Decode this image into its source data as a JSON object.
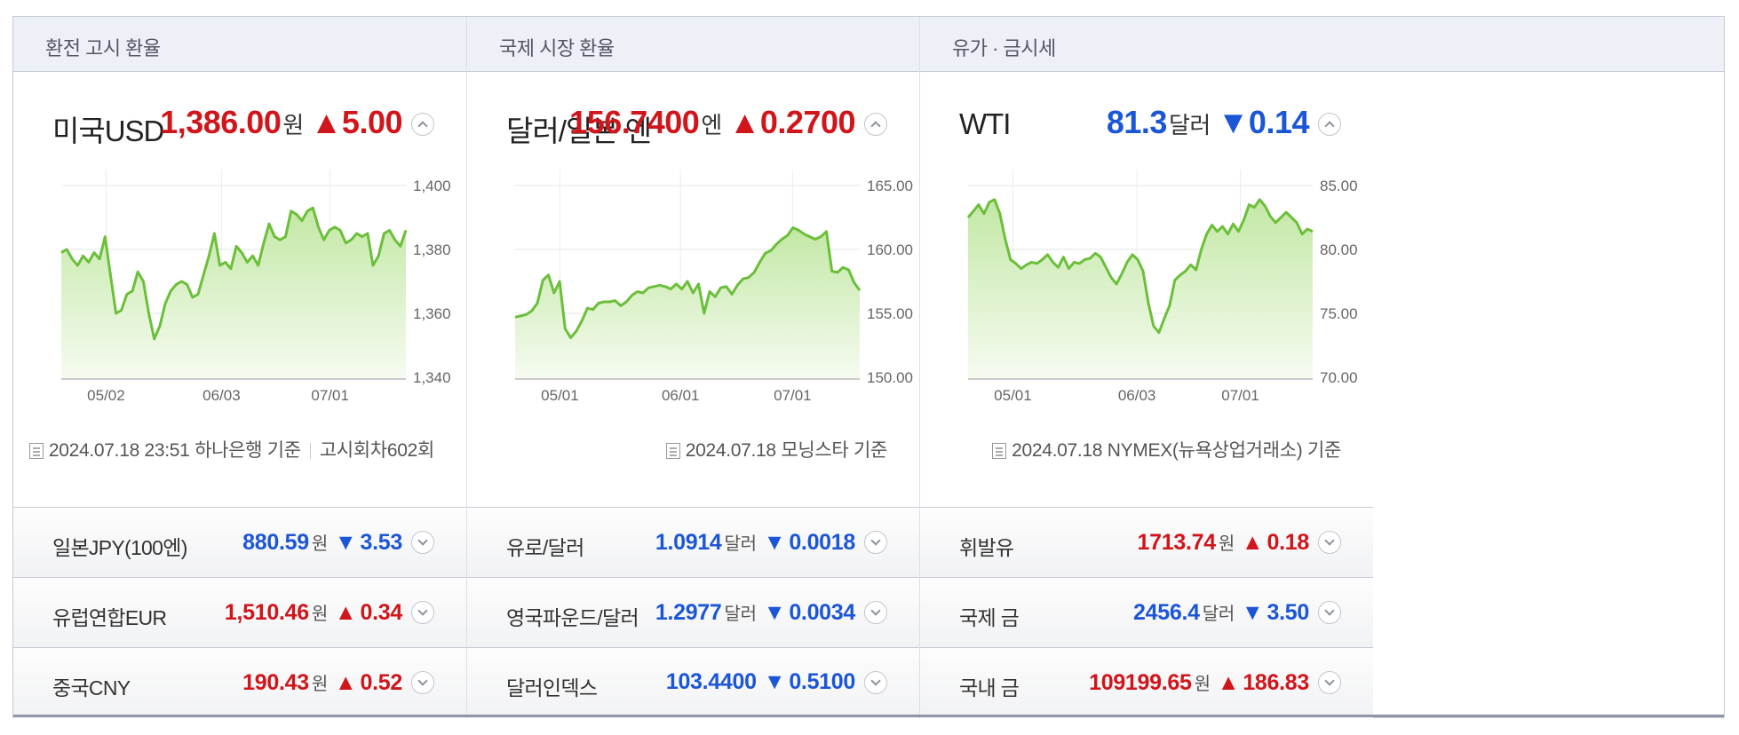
{
  "colors": {
    "up": "#d0151b",
    "down": "#1b56d6",
    "line": "#6bbf3a",
    "fill_top": "#c3e8a5",
    "fill_bottom": "#f6fbf1"
  },
  "panels": [
    {
      "header": "환전 고시 환율",
      "main": {
        "name": "미국USD",
        "price": "1,386.00",
        "unit": "원",
        "change_symbol": "▲",
        "change": "5.00",
        "direction": "up",
        "source_date": "2024.07.18 23:51 하나은행 기준",
        "source_extra": "고시회차602회"
      },
      "rows": [
        {
          "name": "일본JPY(100엔)",
          "price": "880.59",
          "unit": "원",
          "change_symbol": "▼",
          "change": "3.53",
          "direction": "down"
        },
        {
          "name": "유럽연합EUR",
          "price": "1,510.46",
          "unit": "원",
          "change_symbol": "▲",
          "change": "0.34",
          "direction": "up"
        },
        {
          "name": "중국CNY",
          "price": "190.43",
          "unit": "원",
          "change_symbol": "▲",
          "change": "0.52",
          "direction": "up"
        }
      ]
    },
    {
      "header": "국제 시장 환율",
      "main": {
        "name": "달러/일본 엔",
        "price": "156.7400",
        "unit": "엔",
        "change_symbol": "▲",
        "change": "0.2700",
        "direction": "up",
        "source_date": "2024.07.18 모닝스타 기준",
        "source_extra": ""
      },
      "rows": [
        {
          "name": "유로/달러",
          "price": "1.0914",
          "unit": "달러",
          "change_symbol": "▼",
          "change": "0.0018",
          "direction": "down"
        },
        {
          "name": "영국파운드/달러",
          "price": "1.2977",
          "unit": "달러",
          "change_symbol": "▼",
          "change": "0.0034",
          "direction": "down"
        },
        {
          "name": "달러인덱스",
          "price": "103.4400",
          "unit": "",
          "change_symbol": "▼",
          "change": "0.5100",
          "direction": "down"
        }
      ]
    },
    {
      "header": "유가 · 금시세",
      "main": {
        "name": "WTI",
        "price": "81.3",
        "unit": "달러",
        "change_symbol": "▼",
        "change": "0.14",
        "direction": "down",
        "source_date": "2024.07.18 NYMEX(뉴욕상업거래소) 기준",
        "source_extra": ""
      },
      "rows": [
        {
          "name": "휘발유",
          "price": "1713.74",
          "unit": "원",
          "change_symbol": "▲",
          "change": "0.18",
          "direction": "up"
        },
        {
          "name": "국제 금",
          "price": "2456.4",
          "unit": "달러",
          "change_symbol": "▼",
          "change": "3.50",
          "direction": "down"
        },
        {
          "name": "국내 금",
          "price": "109199.65",
          "unit": "원",
          "change_symbol": "▲",
          "change": "186.83",
          "direction": "up"
        }
      ]
    }
  ],
  "chart_data": [
    {
      "type": "area",
      "title": "미국USD",
      "ylim": [
        1340,
        1400
      ],
      "y_ticks": [
        "1,400",
        "1,380",
        "1,360",
        "1,340"
      ],
      "y_tick_values": [
        1400,
        1380,
        1360,
        1340
      ],
      "x_ticks": [
        {
          "label": "05/02",
          "at": 0.13
        },
        {
          "label": "06/03",
          "at": 0.465
        },
        {
          "label": "07/01",
          "at": 0.78
        }
      ],
      "grid": true,
      "values": [
        1379,
        1380,
        1377,
        1375,
        1378,
        1376,
        1379,
        1377,
        1384,
        1372,
        1360,
        1361,
        1366,
        1367,
        1373,
        1370,
        1360,
        1352,
        1356,
        1363,
        1367,
        1369,
        1370,
        1369,
        1365,
        1366,
        1372,
        1378,
        1385,
        1375,
        1376,
        1374,
        1381,
        1379,
        1376,
        1378,
        1375,
        1382,
        1388,
        1384,
        1383,
        1384,
        1392,
        1391,
        1389,
        1392,
        1393,
        1387,
        1383,
        1386,
        1387,
        1386,
        1382,
        1383,
        1385,
        1384,
        1385,
        1375,
        1378,
        1385,
        1386,
        1383,
        1381,
        1386
      ]
    },
    {
      "type": "area",
      "title": "달러/일본 엔",
      "ylim": [
        150,
        165
      ],
      "y_ticks": [
        "165.00",
        "160.00",
        "155.00",
        "150.00"
      ],
      "y_tick_values": [
        165,
        160,
        155,
        150
      ],
      "x_ticks": [
        {
          "label": "05/01",
          "at": 0.13
        },
        {
          "label": "06/01",
          "at": 0.48
        },
        {
          "label": "07/01",
          "at": 0.805
        }
      ],
      "grid": true,
      "values": [
        154.7,
        154.8,
        154.9,
        155.2,
        155.8,
        157.6,
        158.0,
        156.6,
        157.5,
        153.8,
        153.1,
        153.6,
        154.4,
        155.4,
        155.3,
        155.8,
        155.9,
        155.9,
        156.0,
        155.6,
        155.9,
        156.4,
        156.7,
        156.6,
        157.0,
        157.1,
        157.2,
        157.1,
        156.9,
        157.3,
        156.9,
        157.5,
        156.6,
        157.3,
        155.0,
        156.7,
        156.3,
        157.0,
        157.1,
        156.5,
        157.2,
        157.7,
        157.8,
        158.2,
        159.0,
        159.7,
        159.9,
        160.4,
        160.8,
        161.1,
        161.7,
        161.5,
        161.2,
        161.0,
        160.8,
        161.0,
        161.4,
        158.3,
        158.2,
        158.6,
        158.4,
        157.4,
        156.8
      ]
    },
    {
      "type": "area",
      "title": "WTI",
      "ylim": [
        70,
        85
      ],
      "y_ticks": [
        "85.00",
        "80.00",
        "75.00",
        "70.00"
      ],
      "y_tick_values": [
        85,
        80,
        75,
        70
      ],
      "x_ticks": [
        {
          "label": "05/01",
          "at": 0.13
        },
        {
          "label": "06/03",
          "at": 0.49
        },
        {
          "label": "07/01",
          "at": 0.79
        }
      ],
      "grid": true,
      "values": [
        82.5,
        83.0,
        83.5,
        82.8,
        83.7,
        83.9,
        82.8,
        80.8,
        79.2,
        78.9,
        78.5,
        78.8,
        79.0,
        78.9,
        79.2,
        79.6,
        79.0,
        78.6,
        79.4,
        78.5,
        79.0,
        78.9,
        79.2,
        79.3,
        79.7,
        79.4,
        78.6,
        77.8,
        77.3,
        78.1,
        79.0,
        79.6,
        79.2,
        78.3,
        75.8,
        74.0,
        73.5,
        74.6,
        75.6,
        77.6,
        78.0,
        78.3,
        78.8,
        78.4,
        80.0,
        81.2,
        81.9,
        81.4,
        81.8,
        81.2,
        82.0,
        81.4,
        82.3,
        83.5,
        83.3,
        83.9,
        83.4,
        82.6,
        82.1,
        82.5,
        82.9,
        82.5,
        82.1,
        81.2,
        81.6,
        81.4
      ]
    }
  ]
}
